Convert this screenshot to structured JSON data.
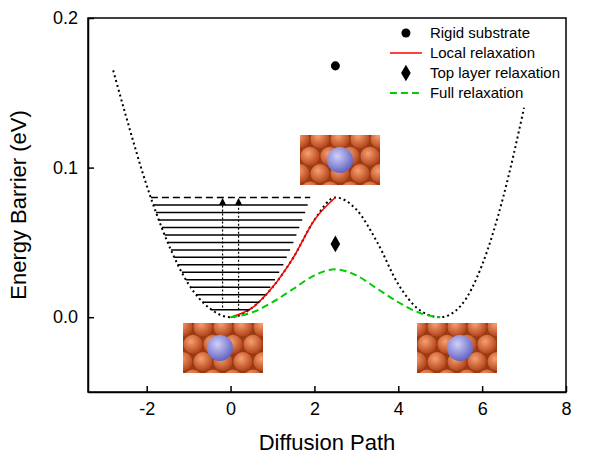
{
  "chart_data": {
    "type": "line",
    "xlabel": "Diffusion Path",
    "ylabel": "Energy Barrier (eV)",
    "xlim": [
      -3.4,
      8
    ],
    "ylim": [
      -0.05,
      0.2
    ],
    "xticks": [
      -2,
      0,
      2,
      4,
      6,
      8
    ],
    "yticks": [
      {
        "value": 0,
        "label": "0.0"
      },
      {
        "value": 0.1,
        "label": "0.1"
      },
      {
        "value": 0.2,
        "label": "0.2"
      }
    ],
    "grid": false,
    "legend": "upper right",
    "series": [
      {
        "type": "line",
        "color": "#000000",
        "line_style": "dotted",
        "x": [
          -2.8,
          -2.5,
          -2,
          -1.5,
          -1,
          -0.5,
          0,
          0.5,
          1,
          1.5,
          2,
          2.5,
          3,
          3.5,
          4,
          4.5,
          5,
          5.5,
          6,
          6.5,
          7
        ],
        "values": [
          0.165,
          0.135,
          0.088,
          0.05,
          0.022,
          0.006,
          0,
          0.006,
          0.02,
          0.04,
          0.065,
          0.08,
          0.072,
          0.05,
          0.022,
          0.005,
          0,
          0.008,
          0.035,
          0.08,
          0.14
        ]
      },
      {
        "name": "Rigid substrate",
        "type": "scatter",
        "marker": "circle",
        "color": "#000000",
        "x": [
          2.5
        ],
        "values": [
          0.168
        ]
      },
      {
        "name": "Local relaxation",
        "type": "line",
        "line_style": "solid",
        "color": "#ff0000",
        "x": [
          0,
          0.5,
          1,
          1.5,
          2,
          2.5
        ],
        "values": [
          0,
          0.006,
          0.02,
          0.04,
          0.065,
          0.08
        ]
      },
      {
        "name": "Top layer relaxation",
        "type": "scatter",
        "marker": "diamond",
        "color": "#000000",
        "x": [
          2.5
        ],
        "values": [
          0.049
        ]
      },
      {
        "name": "Full relaxation",
        "type": "line",
        "line_style": "dashed",
        "color": "#00cc00",
        "x": [
          0,
          0.5,
          1,
          1.5,
          2,
          2.5,
          3,
          3.5,
          4,
          4.5,
          5
        ],
        "values": [
          0,
          0.003,
          0.01,
          0.019,
          0.028,
          0.032,
          0.028,
          0.019,
          0.01,
          0.003,
          0
        ]
      },
      {
        "type": "levels",
        "line_style": "solid",
        "color": "#000000",
        "values": [
          0.005,
          0.01,
          0.015,
          0.02,
          0.025,
          0.03,
          0.035,
          0.04,
          0.045,
          0.05,
          0.055,
          0.06,
          0.065,
          0.07,
          0.075
        ],
        "xmin": [
          -0.47,
          -0.67,
          -0.82,
          -0.95,
          -1.06,
          -1.16,
          -1.26,
          -1.34,
          -1.42,
          -1.5,
          -1.57,
          -1.64,
          -1.71,
          -1.78,
          -1.84
        ],
        "xmax": [
          0.47,
          0.67,
          0.82,
          0.95,
          1.06,
          1.16,
          1.26,
          1.34,
          1.42,
          1.5,
          1.57,
          1.64,
          1.71,
          1.78,
          1.84
        ]
      },
      {
        "type": "levels",
        "line_style": "dashed",
        "color": "#000000",
        "values": [
          0.08
        ],
        "xmin": [
          -1.9
        ],
        "xmax": [
          1.9
        ]
      }
    ]
  }
}
